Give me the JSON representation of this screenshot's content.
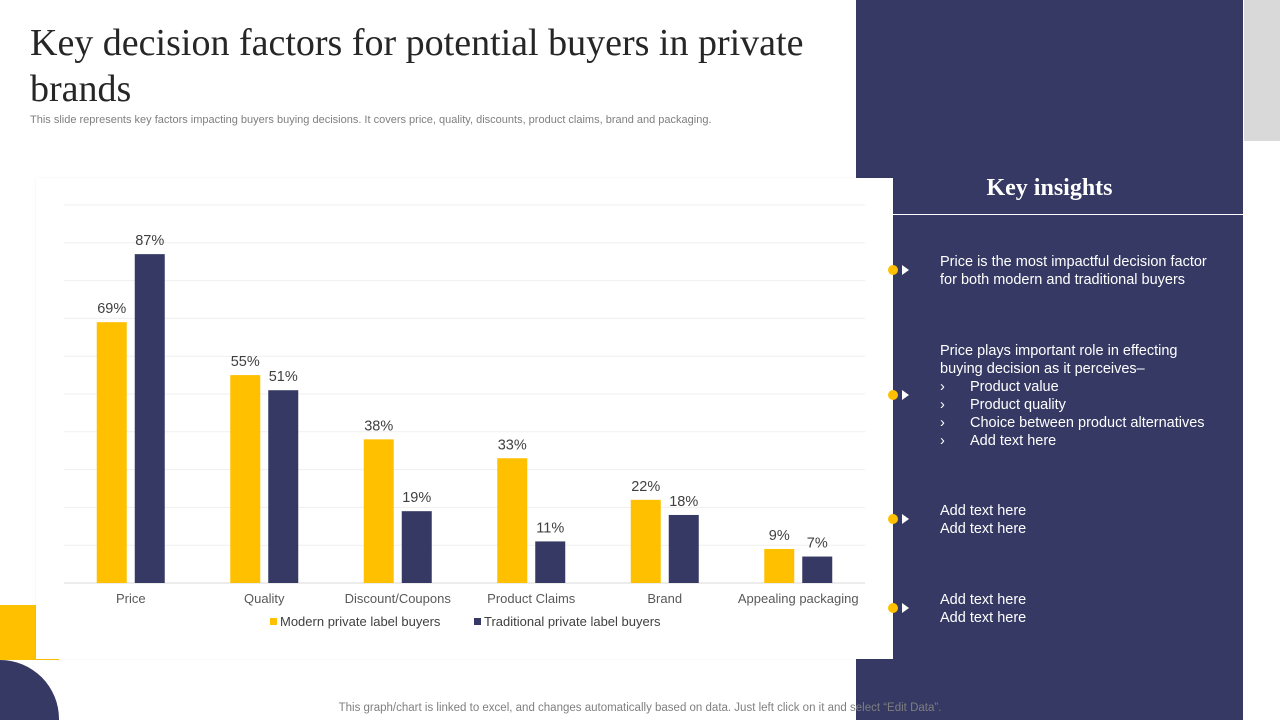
{
  "slide": {
    "title": "Key decision factors for potential buyers in private brands",
    "subtitle": "This slide represents key factors impacting buyers buying decisions. It covers price, quality, discounts, product claims, brand and packaging.",
    "footer": "This graph/chart is linked to excel,  and changes automatically based on data. Just left click on it and select “Edit Data”."
  },
  "colors": {
    "navy": "#353963",
    "yellow": "#ffc000",
    "gray": "#d9d9d9"
  },
  "chart_data": {
    "type": "bar",
    "title": "",
    "xlabel": "",
    "ylabel": "",
    "ylim": [
      0,
      100
    ],
    "grid": true,
    "legend_position": "bottom",
    "value_suffix": "%",
    "categories": [
      "Price",
      "Quality",
      "Discount/Coupons",
      "Product Claims",
      "Brand",
      "Appealing packaging"
    ],
    "series": [
      {
        "name": "Modern private label buyers",
        "color": "#ffc000",
        "values": [
          69,
          55,
          38,
          33,
          22,
          9
        ]
      },
      {
        "name": "Traditional private label buyers",
        "color": "#353963",
        "values": [
          87,
          51,
          19,
          11,
          18,
          7
        ]
      }
    ]
  },
  "insights": {
    "title": "Key insights",
    "items": [
      {
        "lines": [
          "Price is the most impactful decision factor",
          "for both modern and traditional buyers"
        ],
        "bullets": []
      },
      {
        "lines": [
          "Price plays important role in effecting",
          "buying decision as it perceives–"
        ],
        "bullets": [
          "Product value",
          "Product quality",
          "Choice between product alternatives",
          "Add text here"
        ]
      },
      {
        "lines": [
          "Add text here",
          "Add text here"
        ],
        "bullets": []
      },
      {
        "lines": [
          "Add text here",
          "Add text here"
        ],
        "bullets": []
      }
    ],
    "bullet_glyph": "›"
  }
}
